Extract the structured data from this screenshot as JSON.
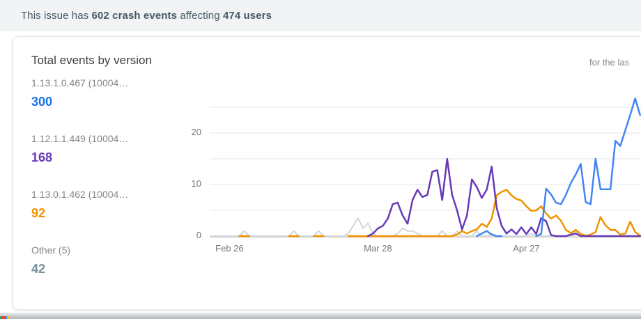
{
  "summary": {
    "part1": "This issue has ",
    "bold1": "602 crash events",
    "part2": " affecting ",
    "bold2": "474 users"
  },
  "card": {
    "title": "Total events by version",
    "period_label": "for the las"
  },
  "legend": {
    "items": [
      {
        "label": "1.13.1.0.467 (10004…",
        "value": "300",
        "color": "#1a73e8"
      },
      {
        "label": "1.12.1.1.449 (10004…",
        "value": "168",
        "color": "#673ab7"
      },
      {
        "label": "1.13.0.1.462 (10004…",
        "value": "92",
        "color": "#f09300"
      },
      {
        "label": "Other (5)",
        "value": "42",
        "color": "#78909c"
      }
    ]
  },
  "chart_data": {
    "type": "line",
    "title": "Total events by version",
    "xlabel": "",
    "ylabel": "",
    "ylim": [
      0,
      31
    ],
    "grid_on": true,
    "grid_values": [
      0,
      5,
      10,
      15,
      20,
      25
    ],
    "yticks": [
      0,
      10,
      20
    ],
    "xticks": [
      {
        "label": "Feb 26",
        "index": 4
      },
      {
        "label": "Mar 28",
        "index": 34
      },
      {
        "label": "Apr 27",
        "index": 64
      }
    ],
    "colors": {
      "gridline": "#e8eaed",
      "baseline": "#dadce0",
      "baseline_accent": "#d8cbbd"
    },
    "series": [
      {
        "name": "Other (5)",
        "color": "#cfd8dc",
        "width": 2,
        "values": [
          0,
          0,
          0,
          0,
          0,
          0,
          0,
          1,
          0,
          0,
          0,
          0,
          0,
          0,
          0,
          0,
          0,
          1,
          0,
          0,
          0,
          0,
          1,
          0,
          0,
          0,
          0,
          0,
          0.5,
          2,
          3.5,
          1.5,
          2.5,
          0.5,
          0,
          0,
          0,
          0,
          0.5,
          1.5,
          1,
          1,
          0.5,
          0,
          0,
          0,
          0,
          1,
          0,
          0,
          1,
          0,
          0,
          0,
          1,
          0,
          0,
          0.5,
          0,
          0,
          0,
          0,
          0,
          0,
          0,
          0.5,
          0,
          0,
          0,
          0,
          0,
          0,
          0,
          0,
          1,
          0,
          0,
          0,
          0,
          0,
          0,
          0,
          0,
          0,
          0,
          0,
          0,
          0
        ]
      },
      {
        "name": "1.13.0.1.462",
        "color": "#f09300",
        "width": 2.5,
        "values": [
          null,
          null,
          null,
          null,
          null,
          null,
          0,
          0,
          0,
          null,
          null,
          null,
          null,
          null,
          null,
          null,
          0,
          0,
          0,
          null,
          null,
          0,
          0,
          0,
          null,
          null,
          null,
          null,
          0,
          0,
          0,
          0,
          0,
          0,
          0,
          0,
          0,
          0,
          0,
          0,
          0,
          0,
          0,
          0,
          0,
          0,
          0,
          0,
          0,
          0,
          0.3,
          1,
          0.5,
          1,
          1.3,
          2.4,
          1.8,
          3.4,
          7.9,
          8.6,
          9,
          7.9,
          7.2,
          6.9,
          5.8,
          4.9,
          5,
          5.8,
          4.4,
          3.4,
          4,
          3,
          1.2,
          0.6,
          1.2,
          0.4,
          0.1,
          0.3,
          0.8,
          3.7,
          2.1,
          1.2,
          1.2,
          0.3,
          0.5,
          2.8,
          0.8,
          0.1
        ]
      },
      {
        "name": "1.12.1.1.449",
        "color": "#673ab7",
        "width": 2.5,
        "values": [
          null,
          null,
          null,
          null,
          null,
          null,
          null,
          null,
          null,
          null,
          null,
          null,
          null,
          null,
          null,
          null,
          null,
          null,
          null,
          null,
          null,
          null,
          null,
          null,
          null,
          null,
          null,
          null,
          null,
          null,
          null,
          null,
          0,
          0.5,
          1.5,
          2,
          3.4,
          6.2,
          6.5,
          4,
          2.4,
          7,
          9,
          7.6,
          8,
          12.5,
          12.8,
          7,
          15,
          8,
          5,
          1.3,
          4,
          11,
          9.5,
          7.4,
          9,
          13.5,
          5.5,
          2,
          0.5,
          1.3,
          0.4,
          1.7,
          0.4,
          1.7,
          0.4,
          3.5,
          2.9,
          0.2,
          0,
          0,
          0,
          0.3,
          0.5,
          0,
          0,
          0,
          0,
          0,
          0,
          0,
          0,
          0,
          0,
          0,
          0,
          0
        ]
      },
      {
        "name": "1.13.1.0.467",
        "color": "#4285f4",
        "width": 2.5,
        "values": [
          null,
          null,
          null,
          null,
          null,
          null,
          null,
          null,
          null,
          null,
          null,
          null,
          null,
          null,
          null,
          null,
          null,
          null,
          null,
          null,
          null,
          null,
          null,
          null,
          null,
          null,
          null,
          null,
          null,
          null,
          null,
          null,
          null,
          null,
          null,
          null,
          null,
          null,
          null,
          null,
          null,
          null,
          null,
          null,
          null,
          null,
          null,
          null,
          null,
          null,
          null,
          null,
          null,
          null,
          0,
          0.5,
          1,
          0.3,
          0,
          0,
          null,
          null,
          null,
          null,
          null,
          null,
          0,
          0.4,
          9.2,
          8.1,
          6.5,
          6.2,
          8,
          10.3,
          12,
          14,
          6.6,
          6.2,
          15,
          9.1,
          9.1,
          9.1,
          18.5,
          17.5,
          20.5,
          23.5,
          26.7,
          23.5
        ]
      }
    ]
  },
  "decor": {
    "corner_dot_colors": [
      "#34a853",
      "#ea4335",
      "#4285f4",
      "#fbbc05"
    ]
  }
}
